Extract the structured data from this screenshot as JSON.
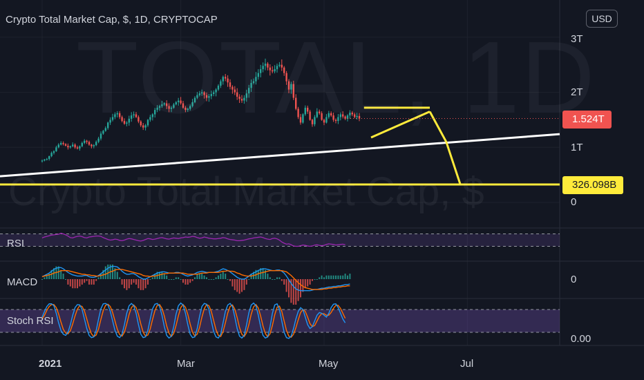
{
  "header": {
    "title": "Crypto Total Market Cap, $, 1D, CRYPTOCAP",
    "currency_button": "USD"
  },
  "watermark": {
    "symbol": "TOTAL, 1D",
    "description": "Crypto Total Market Cap, $"
  },
  "colors": {
    "background": "#131722",
    "candle_up": "#26a69a",
    "candle_down": "#ef5350",
    "trendline": "#ffffff",
    "pattern": "#ffeb3b",
    "rsi": "#9c27b0",
    "macd": "#2196f3",
    "signal": "#ff6d00",
    "stoch_k": "#2196f3",
    "stoch_d": "#ff6d00"
  },
  "price_labels": {
    "current": "1.524T",
    "target": "326.098B"
  },
  "chart_data": [
    {
      "type": "candlestick",
      "name": "price",
      "y_ticks": [
        "3T",
        "2T",
        "1T",
        "0"
      ],
      "y_tick_values": [
        3,
        2,
        1,
        0
      ],
      "y_unit": "trillion USD",
      "ylim": [
        0,
        3.3
      ],
      "x_ticks": [
        "2021",
        "Mar",
        "May",
        "Jul"
      ],
      "x_tick_days": [
        0,
        59,
        120,
        181
      ],
      "x_range_days": [
        -15,
        205
      ],
      "closes": [
        0.76,
        0.78,
        0.79,
        0.84,
        0.9,
        0.93,
        1.0,
        1.05,
        1.08,
        1.06,
        1.03,
        1.0,
        1.02,
        1.05,
        1.0,
        0.98,
        1.02,
        1.08,
        1.12,
        1.1,
        1.05,
        1.02,
        1.04,
        1.1,
        1.16,
        1.25,
        1.3,
        1.35,
        1.45,
        1.5,
        1.55,
        1.6,
        1.62,
        1.55,
        1.48,
        1.43,
        1.45,
        1.52,
        1.58,
        1.6,
        1.55,
        1.47,
        1.4,
        1.36,
        1.4,
        1.5,
        1.55,
        1.6,
        1.68,
        1.72,
        1.75,
        1.78,
        1.8,
        1.75,
        1.7,
        1.72,
        1.78,
        1.82,
        1.85,
        1.8,
        1.72,
        1.68,
        1.7,
        1.75,
        1.82,
        1.9,
        1.95,
        1.98,
        2.0,
        1.95,
        1.9,
        1.93,
        1.97,
        2.0,
        2.05,
        2.12,
        2.2,
        2.28,
        2.25,
        2.18,
        2.1,
        2.05,
        2.0,
        1.92,
        1.88,
        1.85,
        1.9,
        1.98,
        2.08,
        2.17,
        2.2,
        2.28,
        2.35,
        2.42,
        2.48,
        2.52,
        2.45,
        2.4,
        2.38,
        2.42,
        2.48,
        2.5,
        2.45,
        2.35,
        2.2,
        2.05,
        2.15,
        1.9,
        1.7,
        1.55,
        1.45,
        1.6,
        1.72,
        1.65,
        1.5,
        1.42,
        1.55,
        1.65,
        1.62,
        1.5,
        1.45,
        1.55,
        1.62,
        1.58,
        1.5,
        1.48,
        1.55,
        1.6,
        1.56,
        1.52,
        1.58,
        1.63,
        1.6,
        1.55,
        1.57,
        1.524
      ]
    },
    {
      "type": "line",
      "name": "RSI",
      "ylim": [
        0,
        100
      ],
      "levels": [
        70,
        30
      ],
      "values": [
        57,
        60,
        62,
        64,
        66,
        67,
        68,
        69,
        72,
        70,
        67,
        63,
        58,
        57,
        60,
        62,
        63,
        61,
        58,
        57,
        60,
        61,
        62,
        63,
        63,
        62,
        58,
        55,
        52,
        50,
        51,
        53,
        52,
        49,
        48,
        50,
        53,
        55,
        54,
        52,
        50,
        48,
        47,
        49,
        52,
        55,
        54,
        52,
        53,
        55,
        57,
        58,
        56,
        54,
        53,
        55,
        57,
        56,
        55,
        57,
        58,
        60,
        59,
        60,
        62,
        61,
        58,
        56,
        57,
        60,
        58,
        56,
        55,
        54,
        54,
        55,
        56,
        58,
        57,
        54,
        52,
        51,
        50,
        48,
        48,
        49,
        50,
        52,
        54,
        55,
        57,
        58,
        59,
        60,
        58,
        55,
        53,
        52,
        55,
        56,
        54,
        50,
        44,
        40,
        37,
        38,
        35,
        31,
        30,
        30,
        32,
        34,
        33,
        31,
        30,
        31,
        34,
        35,
        33,
        32,
        33,
        36,
        38,
        37,
        36,
        34,
        35,
        36,
        37,
        35
      ]
    },
    {
      "type": "line",
      "name": "MACD",
      "y_ticks": [
        "0"
      ],
      "ylim": [
        -0.25,
        0.3
      ],
      "macd": [
        0.04,
        0.06,
        0.08,
        0.1,
        0.13,
        0.16,
        0.18,
        0.19,
        0.19,
        0.17,
        0.14,
        0.11,
        0.09,
        0.07,
        0.06,
        0.05,
        0.05,
        0.05,
        0.06,
        0.06,
        0.04,
        0.03,
        0.03,
        0.04,
        0.06,
        0.09,
        0.12,
        0.15,
        0.18,
        0.2,
        0.21,
        0.21,
        0.2,
        0.17,
        0.13,
        0.1,
        0.08,
        0.08,
        0.09,
        0.09,
        0.07,
        0.04,
        0.02,
        0.0,
        0.0,
        0.02,
        0.04,
        0.06,
        0.08,
        0.1,
        0.11,
        0.12,
        0.12,
        0.11,
        0.1,
        0.1,
        0.1,
        0.11,
        0.11,
        0.1,
        0.08,
        0.06,
        0.05,
        0.06,
        0.07,
        0.09,
        0.11,
        0.12,
        0.13,
        0.12,
        0.11,
        0.11,
        0.11,
        0.11,
        0.12,
        0.13,
        0.15,
        0.17,
        0.16,
        0.14,
        0.12,
        0.09,
        0.06,
        0.03,
        0.01,
        0.0,
        0.0,
        0.02,
        0.05,
        0.08,
        0.1,
        0.12,
        0.14,
        0.16,
        0.17,
        0.17,
        0.16,
        0.15,
        0.14,
        0.14,
        0.15,
        0.15,
        0.13,
        0.1,
        0.05,
        -0.01,
        -0.07,
        -0.12,
        -0.16,
        -0.18,
        -0.19,
        -0.19,
        -0.19,
        -0.19,
        -0.19,
        -0.18,
        -0.17,
        -0.17,
        -0.16,
        -0.15,
        -0.15,
        -0.14,
        -0.13,
        -0.13,
        -0.12,
        -0.12,
        -0.11,
        -0.11,
        -0.1,
        -0.09,
        -0.09,
        -0.08
      ],
      "signal": [
        0.04,
        0.05,
        0.06,
        0.07,
        0.08,
        0.1,
        0.11,
        0.12,
        0.14,
        0.14,
        0.14,
        0.14,
        0.13,
        0.12,
        0.11,
        0.1,
        0.09,
        0.08,
        0.08,
        0.07,
        0.07,
        0.06,
        0.06,
        0.05,
        0.05,
        0.06,
        0.07,
        0.08,
        0.1,
        0.12,
        0.13,
        0.15,
        0.16,
        0.16,
        0.16,
        0.15,
        0.14,
        0.13,
        0.12,
        0.11,
        0.1,
        0.09,
        0.08,
        0.06,
        0.05,
        0.05,
        0.04,
        0.05,
        0.05,
        0.06,
        0.07,
        0.08,
        0.09,
        0.09,
        0.1,
        0.1,
        0.1,
        0.1,
        0.1,
        0.1,
        0.1,
        0.09,
        0.08,
        0.08,
        0.08,
        0.08,
        0.08,
        0.09,
        0.1,
        0.1,
        0.1,
        0.11,
        0.11,
        0.11,
        0.11,
        0.11,
        0.12,
        0.13,
        0.13,
        0.14,
        0.13,
        0.13,
        0.12,
        0.1,
        0.09,
        0.07,
        0.06,
        0.05,
        0.05,
        0.05,
        0.06,
        0.07,
        0.09,
        0.1,
        0.11,
        0.12,
        0.13,
        0.14,
        0.14,
        0.14,
        0.14,
        0.14,
        0.14,
        0.13,
        0.12,
        0.09,
        0.06,
        0.02,
        -0.02,
        -0.06,
        -0.09,
        -0.12,
        -0.14,
        -0.15,
        -0.16,
        -0.17,
        -0.17,
        -0.17,
        -0.17,
        -0.17,
        -0.16,
        -0.16,
        -0.15,
        -0.15,
        -0.14,
        -0.14,
        -0.13,
        -0.13,
        -0.12,
        -0.12,
        -0.11,
        -0.11
      ]
    },
    {
      "type": "line",
      "name": "Stoch RSI",
      "y_ticks": [
        "0.00"
      ],
      "ylim": [
        0,
        100
      ],
      "levels": [
        80,
        20
      ],
      "k": [
        60,
        75,
        88,
        95,
        95,
        90,
        70,
        45,
        25,
        15,
        12,
        20,
        40,
        65,
        85,
        93,
        92,
        80,
        55,
        30,
        12,
        6,
        8,
        25,
        55,
        82,
        95,
        96,
        92,
        75,
        50,
        25,
        10,
        6,
        15,
        40,
        70,
        90,
        96,
        90,
        70,
        40,
        15,
        6,
        8,
        25,
        55,
        82,
        94,
        96,
        88,
        65,
        35,
        12,
        5,
        10,
        35,
        68,
        90,
        97,
        92,
        70,
        40,
        15,
        6,
        8,
        30,
        62,
        88,
        96,
        94,
        80,
        50,
        22,
        8,
        5,
        15,
        45,
        75,
        92,
        96,
        88,
        60,
        30,
        10,
        5,
        12,
        40,
        72,
        92,
        97,
        90,
        65,
        35,
        12,
        5,
        8,
        35,
        70,
        92,
        95,
        80,
        50,
        20,
        6,
        4,
        10,
        30,
        55,
        75,
        85,
        80,
        60,
        40,
        30,
        35,
        50,
        65,
        72,
        70,
        65,
        60,
        70,
        85,
        94,
        95,
        85,
        70,
        55,
        45
      ],
      "d": [
        55,
        65,
        78,
        88,
        93,
        93,
        85,
        68,
        47,
        28,
        18,
        16,
        24,
        42,
        63,
        81,
        90,
        88,
        76,
        55,
        33,
        16,
        9,
        13,
        29,
        54,
        77,
        91,
        94,
        88,
        72,
        50,
        28,
        14,
        10,
        20,
        42,
        67,
        85,
        92,
        85,
        67,
        42,
        20,
        10,
        13,
        29,
        54,
        77,
        91,
        93,
        83,
        63,
        37,
        18,
        9,
        17,
        38,
        64,
        85,
        93,
        86,
        67,
        42,
        20,
        10,
        15,
        33,
        60,
        82,
        93,
        90,
        75,
        51,
        27,
        12,
        9,
        22,
        45,
        71,
        88,
        92,
        81,
        59,
        33,
        15,
        9,
        19,
        41,
        68,
        87,
        93,
        84,
        63,
        37,
        17,
        8,
        16,
        38,
        66,
        86,
        89,
        75,
        50,
        25,
        10,
        7,
        15,
        32,
        53,
        72,
        80,
        75,
        60,
        43,
        35,
        38,
        50,
        62,
        69,
        69,
        65,
        65,
        72,
        83,
        91,
        91,
        83,
        70,
        57
      ]
    }
  ]
}
